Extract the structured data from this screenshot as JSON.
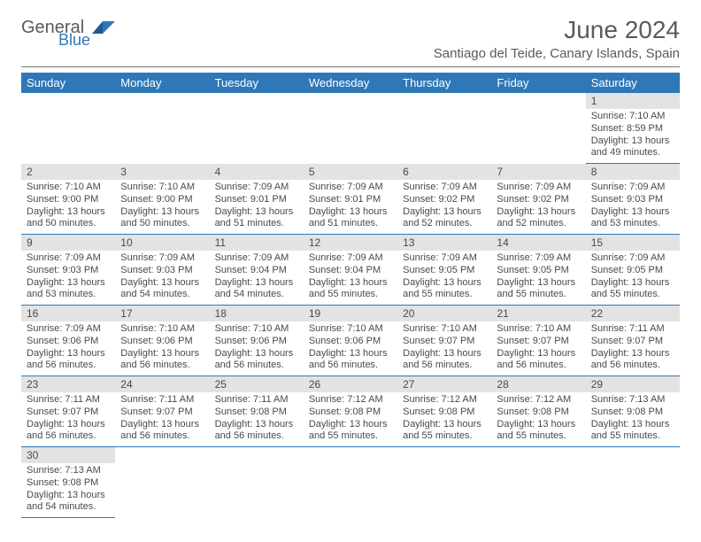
{
  "brand": {
    "primary": "General",
    "secondary": "Blue"
  },
  "title": "June 2024",
  "location": "Santiago del Teide, Canary Islands, Spain",
  "colors": {
    "header_bg": "#2f78b8",
    "header_text": "#ffffff",
    "daynum_bg": "#e3e3e3",
    "border": "#2f78b8",
    "text": "#4a4a4a",
    "title_text": "#5a5a5a"
  },
  "weekdays": [
    "Sunday",
    "Monday",
    "Tuesday",
    "Wednesday",
    "Thursday",
    "Friday",
    "Saturday"
  ],
  "weeks": [
    [
      null,
      null,
      null,
      null,
      null,
      null,
      {
        "d": "1",
        "sr": "7:10 AM",
        "ss": "8:59 PM",
        "dh": "13",
        "dm": "49"
      }
    ],
    [
      {
        "d": "2",
        "sr": "7:10 AM",
        "ss": "9:00 PM",
        "dh": "13",
        "dm": "50"
      },
      {
        "d": "3",
        "sr": "7:10 AM",
        "ss": "9:00 PM",
        "dh": "13",
        "dm": "50"
      },
      {
        "d": "4",
        "sr": "7:09 AM",
        "ss": "9:01 PM",
        "dh": "13",
        "dm": "51"
      },
      {
        "d": "5",
        "sr": "7:09 AM",
        "ss": "9:01 PM",
        "dh": "13",
        "dm": "51"
      },
      {
        "d": "6",
        "sr": "7:09 AM",
        "ss": "9:02 PM",
        "dh": "13",
        "dm": "52"
      },
      {
        "d": "7",
        "sr": "7:09 AM",
        "ss": "9:02 PM",
        "dh": "13",
        "dm": "52"
      },
      {
        "d": "8",
        "sr": "7:09 AM",
        "ss": "9:03 PM",
        "dh": "13",
        "dm": "53"
      }
    ],
    [
      {
        "d": "9",
        "sr": "7:09 AM",
        "ss": "9:03 PM",
        "dh": "13",
        "dm": "53"
      },
      {
        "d": "10",
        "sr": "7:09 AM",
        "ss": "9:03 PM",
        "dh": "13",
        "dm": "54"
      },
      {
        "d": "11",
        "sr": "7:09 AM",
        "ss": "9:04 PM",
        "dh": "13",
        "dm": "54"
      },
      {
        "d": "12",
        "sr": "7:09 AM",
        "ss": "9:04 PM",
        "dh": "13",
        "dm": "55"
      },
      {
        "d": "13",
        "sr": "7:09 AM",
        "ss": "9:05 PM",
        "dh": "13",
        "dm": "55"
      },
      {
        "d": "14",
        "sr": "7:09 AM",
        "ss": "9:05 PM",
        "dh": "13",
        "dm": "55"
      },
      {
        "d": "15",
        "sr": "7:09 AM",
        "ss": "9:05 PM",
        "dh": "13",
        "dm": "55"
      }
    ],
    [
      {
        "d": "16",
        "sr": "7:09 AM",
        "ss": "9:06 PM",
        "dh": "13",
        "dm": "56"
      },
      {
        "d": "17",
        "sr": "7:10 AM",
        "ss": "9:06 PM",
        "dh": "13",
        "dm": "56"
      },
      {
        "d": "18",
        "sr": "7:10 AM",
        "ss": "9:06 PM",
        "dh": "13",
        "dm": "56"
      },
      {
        "d": "19",
        "sr": "7:10 AM",
        "ss": "9:06 PM",
        "dh": "13",
        "dm": "56"
      },
      {
        "d": "20",
        "sr": "7:10 AM",
        "ss": "9:07 PM",
        "dh": "13",
        "dm": "56"
      },
      {
        "d": "21",
        "sr": "7:10 AM",
        "ss": "9:07 PM",
        "dh": "13",
        "dm": "56"
      },
      {
        "d": "22",
        "sr": "7:11 AM",
        "ss": "9:07 PM",
        "dh": "13",
        "dm": "56"
      }
    ],
    [
      {
        "d": "23",
        "sr": "7:11 AM",
        "ss": "9:07 PM",
        "dh": "13",
        "dm": "56"
      },
      {
        "d": "24",
        "sr": "7:11 AM",
        "ss": "9:07 PM",
        "dh": "13",
        "dm": "56"
      },
      {
        "d": "25",
        "sr": "7:11 AM",
        "ss": "9:08 PM",
        "dh": "13",
        "dm": "56"
      },
      {
        "d": "26",
        "sr": "7:12 AM",
        "ss": "9:08 PM",
        "dh": "13",
        "dm": "55"
      },
      {
        "d": "27",
        "sr": "7:12 AM",
        "ss": "9:08 PM",
        "dh": "13",
        "dm": "55"
      },
      {
        "d": "28",
        "sr": "7:12 AM",
        "ss": "9:08 PM",
        "dh": "13",
        "dm": "55"
      },
      {
        "d": "29",
        "sr": "7:13 AM",
        "ss": "9:08 PM",
        "dh": "13",
        "dm": "55"
      }
    ],
    [
      {
        "d": "30",
        "sr": "7:13 AM",
        "ss": "9:08 PM",
        "dh": "13",
        "dm": "54"
      },
      null,
      null,
      null,
      null,
      null,
      null
    ]
  ],
  "labels": {
    "sunrise": "Sunrise:",
    "sunset": "Sunset:",
    "daylight": "Daylight:",
    "hours": "hours",
    "and": "and",
    "minutes": "minutes."
  }
}
